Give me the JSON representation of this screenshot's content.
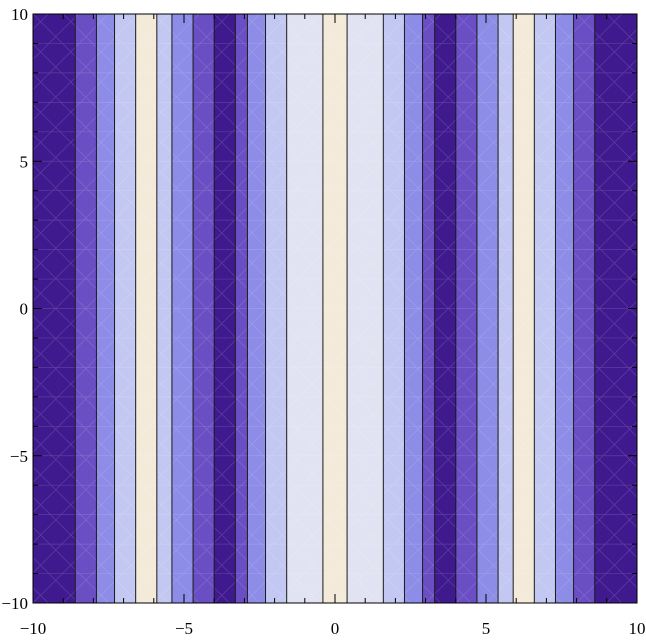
{
  "chart_data": {
    "type": "contour",
    "title": "",
    "xlabel": "",
    "ylabel": "",
    "xlim": [
      -10,
      10
    ],
    "ylim": [
      -10,
      10
    ],
    "x_ticks": [
      -10,
      -5,
      0,
      5,
      10
    ],
    "y_ticks": [
      -10,
      -5,
      0,
      5,
      10
    ],
    "x_tick_labels": [
      "−10",
      "−5",
      "0",
      "5",
      "10"
    ],
    "y_tick_labels": [
      "−10",
      "−5",
      "0",
      "5",
      "10"
    ],
    "minor_tick_step": 1,
    "grid": false,
    "legend": "none",
    "contour_lines_x": [
      -8.6,
      -7.9,
      -7.3,
      -6.6,
      -5.9,
      -5.4,
      -4.7,
      -4.0,
      -3.3,
      -2.9,
      -2.3,
      -1.6,
      -0.4,
      0.4,
      1.6,
      2.3,
      2.9,
      3.3,
      4.0,
      4.7,
      5.4,
      5.9,
      6.6,
      7.3,
      7.9,
      8.6
    ],
    "bands": [
      {
        "from": -10.0,
        "to": -8.6,
        "color": "#3f1a8f"
      },
      {
        "from": -8.6,
        "to": -7.9,
        "color": "#6a4ec3"
      },
      {
        "from": -7.9,
        "to": -7.3,
        "color": "#8d8ce6"
      },
      {
        "from": -7.3,
        "to": -6.6,
        "color": "#c3c8f2"
      },
      {
        "from": -6.6,
        "to": -5.9,
        "color": "#f3ead9"
      },
      {
        "from": -5.9,
        "to": -5.4,
        "color": "#c3c8f2"
      },
      {
        "from": -5.4,
        "to": -4.7,
        "color": "#8d8ce6"
      },
      {
        "from": -4.7,
        "to": -4.0,
        "color": "#6a4ec3"
      },
      {
        "from": -4.0,
        "to": -3.3,
        "color": "#3f1a8f"
      },
      {
        "from": -3.3,
        "to": -2.9,
        "color": "#6a4ec3"
      },
      {
        "from": -2.9,
        "to": -2.3,
        "color": "#8d8ce6"
      },
      {
        "from": -2.3,
        "to": -1.6,
        "color": "#c3c8f2"
      },
      {
        "from": -1.6,
        "to": -0.4,
        "color": "#e2e3f2"
      },
      {
        "from": -0.4,
        "to": 0.4,
        "color": "#f3ead9"
      },
      {
        "from": 0.4,
        "to": 1.6,
        "color": "#e2e3f2"
      },
      {
        "from": 1.6,
        "to": 2.3,
        "color": "#c3c8f2"
      },
      {
        "from": 2.3,
        "to": 2.9,
        "color": "#8d8ce6"
      },
      {
        "from": 2.9,
        "to": 3.3,
        "color": "#6a4ec3"
      },
      {
        "from": 3.3,
        "to": 4.0,
        "color": "#3f1a8f"
      },
      {
        "from": 4.0,
        "to": 4.7,
        "color": "#6a4ec3"
      },
      {
        "from": 4.7,
        "to": 5.4,
        "color": "#8d8ce6"
      },
      {
        "from": 5.4,
        "to": 5.9,
        "color": "#c3c8f2"
      },
      {
        "from": 5.9,
        "to": 6.6,
        "color": "#f3ead9"
      },
      {
        "from": 6.6,
        "to": 7.3,
        "color": "#c3c8f2"
      },
      {
        "from": 7.3,
        "to": 7.9,
        "color": "#8d8ce6"
      },
      {
        "from": 7.9,
        "to": 8.6,
        "color": "#6a4ec3"
      },
      {
        "from": 8.6,
        "to": 10.0,
        "color": "#3f1a8f"
      }
    ],
    "contour_line_color": "#1a1a1a",
    "frame_color": "#000000"
  }
}
